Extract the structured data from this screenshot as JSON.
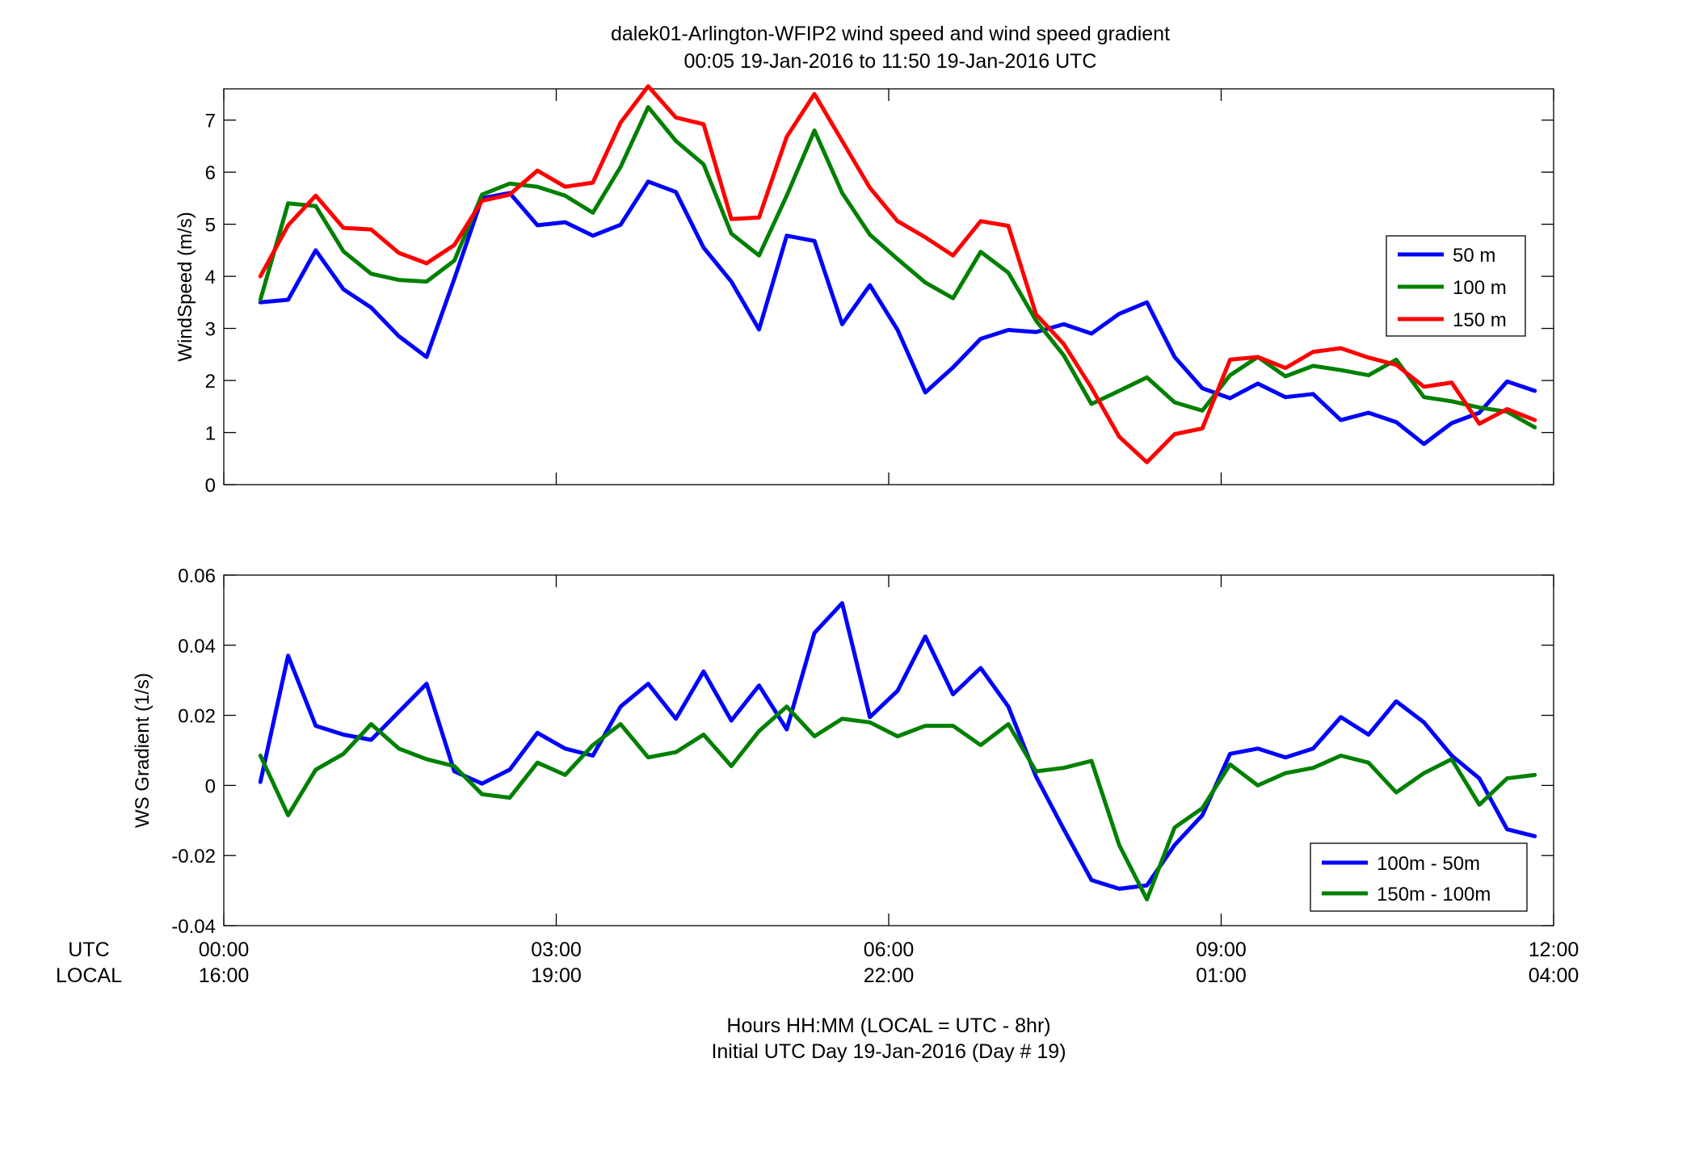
{
  "title": {
    "line1": "dalek01-Arlington-WFIP2  wind speed and wind speed gradient",
    "line2": "00:05 19-Jan-2016 to 11:50 19-Jan-2016  UTC"
  },
  "xaxis": {
    "row_label_utc": "UTC",
    "row_label_local": "LOCAL",
    "utc_ticks": [
      "00:00",
      "03:00",
      "06:00",
      "09:00",
      "12:00"
    ],
    "local_ticks": [
      "16:00",
      "19:00",
      "22:00",
      "01:00",
      "04:00"
    ],
    "label_line1": "Hours HH:MM  (LOCAL = UTC - 8hr)",
    "label_line2": "Initial UTC Day 19-Jan-2016 (Day # 19)"
  },
  "colors": {
    "blue": "#0000ff",
    "green": "#008000",
    "red": "#ff0000"
  },
  "chart_data": [
    {
      "type": "line",
      "ylabel": "WindSpeed (m/s)",
      "xlim": [
        0,
        12
      ],
      "ylim": [
        0,
        7.6
      ],
      "yticks": [
        "0",
        "1",
        "2",
        "3",
        "4",
        "5",
        "6",
        "7"
      ],
      "legend_position": "right",
      "x": [
        0.33,
        0.58,
        0.83,
        1.08,
        1.33,
        1.58,
        1.83,
        2.08,
        2.33,
        2.58,
        2.83,
        3.08,
        3.33,
        3.58,
        3.83,
        4.08,
        4.33,
        4.58,
        4.83,
        5.08,
        5.33,
        5.58,
        5.83,
        6.08,
        6.33,
        6.58,
        6.83,
        7.08,
        7.33,
        7.58,
        7.83,
        8.08,
        8.33,
        8.58,
        8.83,
        9.08,
        9.33,
        9.58,
        9.83,
        10.08,
        10.33,
        10.58,
        10.83,
        11.08,
        11.33,
        11.58,
        11.83
      ],
      "series": [
        {
          "name": "50 m",
          "color": "#0000ff",
          "values": [
            3.5,
            3.55,
            4.5,
            3.75,
            3.4,
            2.85,
            2.45,
            3.95,
            5.5,
            5.6,
            4.98,
            5.04,
            4.78,
            4.99,
            5.82,
            5.62,
            4.55,
            3.9,
            2.98,
            4.78,
            4.68,
            3.08,
            3.83,
            2.97,
            1.77,
            2.25,
            2.8,
            2.97,
            2.93,
            3.08,
            2.9,
            3.28,
            3.5,
            2.45,
            1.85,
            1.66,
            1.94,
            1.68,
            1.74,
            1.24,
            1.38,
            1.2,
            0.78,
            1.18,
            1.38,
            1.98,
            1.8
          ]
        },
        {
          "name": "100 m",
          "color": "#008000",
          "values": [
            3.55,
            5.4,
            5.35,
            4.48,
            4.05,
            3.93,
            3.9,
            4.3,
            5.57,
            5.78,
            5.72,
            5.55,
            5.22,
            6.1,
            7.25,
            6.6,
            6.15,
            4.82,
            4.4,
            5.55,
            6.8,
            5.6,
            4.8,
            4.33,
            3.88,
            3.58,
            4.47,
            4.07,
            3.15,
            2.48,
            1.55,
            1.8,
            2.06,
            1.58,
            1.42,
            2.1,
            2.45,
            2.08,
            2.28,
            2.2,
            2.1,
            2.4,
            1.68,
            1.6,
            1.48,
            1.4,
            1.1
          ]
        },
        {
          "name": "150 m",
          "color": "#ff0000",
          "values": [
            4.0,
            4.98,
            5.55,
            4.93,
            4.9,
            4.45,
            4.25,
            4.6,
            5.45,
            5.57,
            6.03,
            5.72,
            5.8,
            6.95,
            7.65,
            7.05,
            6.92,
            5.1,
            5.13,
            6.68,
            7.5,
            6.6,
            5.7,
            5.06,
            4.75,
            4.4,
            5.06,
            4.97,
            3.27,
            2.7,
            1.86,
            0.92,
            0.43,
            0.97,
            1.08,
            2.4,
            2.45,
            2.24,
            2.55,
            2.62,
            2.44,
            2.3,
            1.88,
            1.96,
            1.17,
            1.45,
            1.24
          ]
        }
      ]
    },
    {
      "type": "line",
      "ylabel": "WS Gradient (1/s)",
      "xlim": [
        0,
        12
      ],
      "ylim": [
        -0.04,
        0.06
      ],
      "yticks": [
        "-0.04",
        "-0.02",
        "0",
        "0.02",
        "0.04",
        "0.06"
      ],
      "legend_position": "bottom-right",
      "x": [
        0.33,
        0.58,
        0.83,
        1.08,
        1.33,
        1.58,
        1.83,
        2.08,
        2.33,
        2.58,
        2.83,
        3.08,
        3.33,
        3.58,
        3.83,
        4.08,
        4.33,
        4.58,
        4.83,
        5.08,
        5.33,
        5.58,
        5.83,
        6.08,
        6.33,
        6.58,
        6.83,
        7.08,
        7.33,
        7.58,
        7.83,
        8.08,
        8.33,
        8.58,
        8.83,
        9.08,
        9.33,
        9.58,
        9.83,
        10.08,
        10.33,
        10.58,
        10.83,
        11.08,
        11.33,
        11.58,
        11.83
      ],
      "series": [
        {
          "name": "100m - 50m",
          "color": "#0000ff",
          "values": [
            0.001,
            0.037,
            0.017,
            0.0145,
            0.013,
            0.021,
            0.029,
            0.004,
            0.0005,
            0.0045,
            0.015,
            0.0105,
            0.0085,
            0.0225,
            0.029,
            0.019,
            0.0325,
            0.0185,
            0.0285,
            0.016,
            0.0435,
            0.052,
            0.0195,
            0.027,
            0.0425,
            0.026,
            0.0335,
            0.0225,
            0.0025,
            -0.0125,
            -0.027,
            -0.0295,
            -0.0285,
            -0.017,
            -0.0085,
            0.009,
            0.0105,
            0.008,
            0.0105,
            0.0195,
            0.0145,
            0.024,
            0.018,
            0.0085,
            0.002,
            -0.0125,
            -0.0145
          ]
        },
        {
          "name": "150m - 100m",
          "color": "#008000",
          "values": [
            0.0085,
            -0.0085,
            0.0045,
            0.009,
            0.0175,
            0.0105,
            0.0075,
            0.0055,
            -0.0025,
            -0.0035,
            0.0065,
            0.003,
            0.0115,
            0.0175,
            0.008,
            0.0095,
            0.0145,
            0.0055,
            0.0155,
            0.0225,
            0.014,
            0.019,
            0.018,
            0.014,
            0.017,
            0.017,
            0.0115,
            0.0175,
            0.004,
            0.005,
            0.007,
            -0.017,
            -0.0325,
            -0.012,
            -0.0065,
            0.006,
            0.0,
            0.0035,
            0.005,
            0.0085,
            0.0065,
            -0.002,
            0.0035,
            0.0075,
            -0.0055,
            0.002,
            0.003
          ]
        }
      ]
    }
  ]
}
